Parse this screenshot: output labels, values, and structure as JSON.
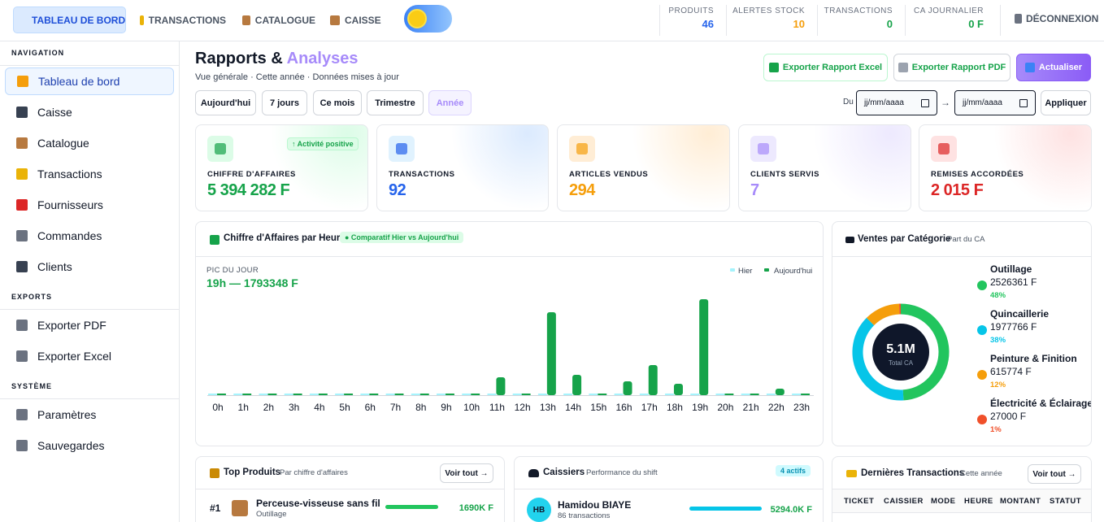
{
  "topbar": {
    "tabs": [
      "TABLEAU DE BORD",
      "TRANSACTIONS",
      "CATALOGUE",
      "CAISSE"
    ],
    "stats": [
      {
        "label": "PRODUITS",
        "value": "46"
      },
      {
        "label": "ALERTES STOCK",
        "value": "10"
      },
      {
        "label": "TRANSACTIONS",
        "value": "0"
      },
      {
        "label": "CA JOURNALIER",
        "value": "0 F"
      }
    ],
    "logout": "DÉCONNEXION"
  },
  "sidebar": {
    "sections": [
      {
        "title": "NAVIGATION",
        "items": [
          "Tableau de bord",
          "Caisse",
          "Catalogue",
          "Transactions",
          "Fournisseurs",
          "Commandes",
          "Clients"
        ]
      },
      {
        "title": "EXPORTS",
        "items": [
          "Exporter PDF",
          "Exporter Excel"
        ]
      },
      {
        "title": "SYSTÈME",
        "items": [
          "Paramètres",
          "Sauvegardes"
        ]
      }
    ]
  },
  "header": {
    "title": "Rapports &",
    "title_accent": "Analyses",
    "subtitle": "Vue générale · Cette année · Données mises à jour",
    "buttons": [
      "Exporter Rapport Excel",
      "Exporter Rapport PDF",
      "Actualiser"
    ]
  },
  "filters": {
    "periods": [
      "Aujourd'hui",
      "7 jours",
      "Ce mois",
      "Trimestre",
      "Année"
    ],
    "from_label": "Du",
    "date_placeholder": "jj/mm/aaaa",
    "to_label": "→",
    "apply": "Appliquer"
  },
  "kpis": [
    {
      "label": "CHIFFRE D'AFFAIRES",
      "value": "5 394 282 F",
      "badge": "↑ Activité positive"
    },
    {
      "label": "TRANSACTIONS",
      "value": "92"
    },
    {
      "label": "ARTICLES VENDUS",
      "value": "294"
    },
    {
      "label": "CLIENTS SERVIS",
      "value": "7"
    },
    {
      "label": "REMISES ACCORDÉES",
      "value": "2 015 F"
    }
  ],
  "hourly_chart": {
    "type": "bar",
    "title": "Chiffre d'Affaires par Heure",
    "badge": "● Comparatif Hier vs Aujourd'hui",
    "peak_label": "PIC DU JOUR",
    "peak_value": "19h — 1793348 F",
    "categories": [
      "0h",
      "1h",
      "2h",
      "3h",
      "4h",
      "5h",
      "6h",
      "7h",
      "8h",
      "9h",
      "10h",
      "11h",
      "12h",
      "13h",
      "14h",
      "15h",
      "16h",
      "17h",
      "18h",
      "19h",
      "20h",
      "21h",
      "22h",
      "23h"
    ],
    "series": [
      {
        "name": "Hier",
        "color": "#a5f3fc",
        "values": [
          0,
          0,
          0,
          0,
          0,
          0,
          0,
          0,
          0,
          0,
          0,
          0,
          0,
          0,
          0,
          0,
          0,
          0,
          0,
          0,
          0,
          0,
          0,
          0
        ]
      },
      {
        "name": "Aujourd'hui",
        "color": "#16a34a",
        "values": [
          0,
          0,
          0,
          0,
          0,
          0,
          0,
          0,
          0,
          0,
          30000,
          334000,
          0,
          1550000,
          380000,
          0,
          258000,
          562000,
          213000,
          1793348,
          0,
          20000,
          122000,
          0
        ]
      }
    ]
  },
  "category_chart": {
    "type": "pie",
    "title": "Ventes par Catégorie",
    "subtitle": "Part du CA",
    "center_value": "5.1M",
    "center_label": "Total CA",
    "categories": [
      "Outillage",
      "Quincaillerie",
      "Peinture & Finition",
      "Électricité & Éclairage"
    ],
    "values": [
      2526361,
      1977766,
      615774,
      27000
    ],
    "value_labels": [
      "2526361 F",
      "1977766 F",
      "615774 F",
      "27000 F"
    ],
    "percent_labels": [
      "48%",
      "38%",
      "12%",
      "1%"
    ],
    "colors": [
      "#22c55e",
      "#06c5e8",
      "#f59e0b",
      "#f0502a"
    ]
  },
  "top_products": {
    "title": "Top Produits",
    "subtitle": "Par chiffre d'affaires",
    "button": "Voir tout →",
    "rows": [
      {
        "rank": "#1",
        "name": "Perceuse-visseuse sans fil",
        "category": "Outillage",
        "value": "1690K F"
      }
    ]
  },
  "cashiers": {
    "title": "Caissiers",
    "subtitle": "Performance du shift",
    "badge": "4 actifs",
    "rows": [
      {
        "initials": "HB",
        "name": "Hamidou BIAYE",
        "detail": "86 transactions",
        "value": "5294.0K F"
      }
    ]
  },
  "transactions": {
    "title": "Dernières Transactions",
    "subtitle": "Cette année",
    "button": "Voir tout →",
    "columns": [
      "TICKET",
      "CAISSIER",
      "MODE",
      "HEURE",
      "MONTANT",
      "STATUT"
    ]
  }
}
